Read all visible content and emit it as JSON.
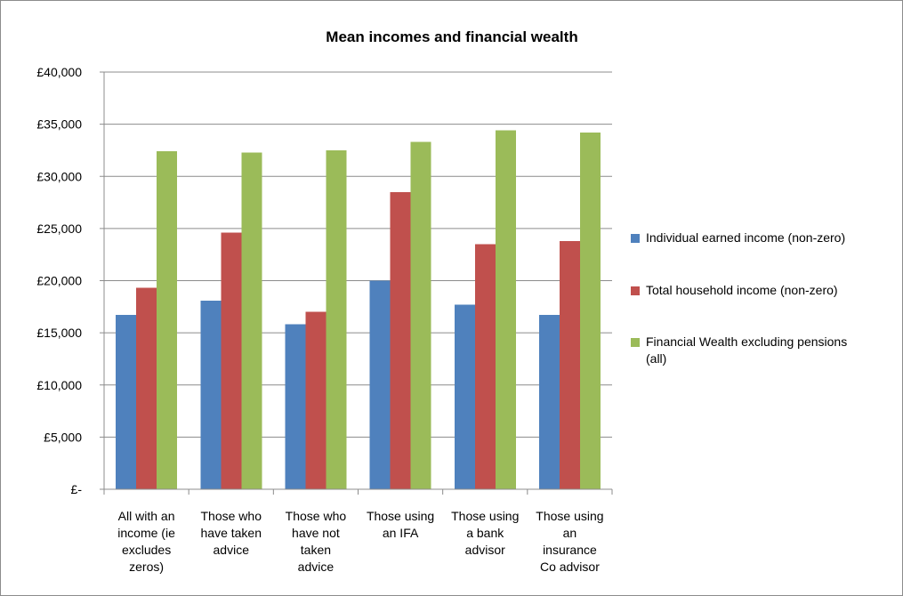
{
  "chart_data": {
    "type": "bar",
    "title": "Mean incomes and financial wealth",
    "categories": [
      [
        "All with an",
        "income (ie",
        "excludes",
        "zeros)"
      ],
      [
        "Those who",
        "have taken",
        "advice"
      ],
      [
        "Those who",
        "have not",
        "taken",
        "advice"
      ],
      [
        "Those using",
        "an IFA"
      ],
      [
        "Those using",
        "a bank",
        "advisor"
      ],
      [
        "Those using",
        "an",
        "insurance",
        "Co advisor"
      ]
    ],
    "series": [
      {
        "name": "Individual earned income (non-zero)",
        "legend_lines": [
          "Individual earned income (non-zero)"
        ],
        "color": "#4F81BD",
        "values": [
          16700,
          18100,
          15800,
          20000,
          17700,
          16700
        ]
      },
      {
        "name": "Total household income (non-zero)",
        "legend_lines": [
          "Total household income (non-zero)"
        ],
        "color": "#C0504D",
        "values": [
          19300,
          24600,
          17000,
          28500,
          23500,
          23800
        ]
      },
      {
        "name": "Financial Wealth excluding pensions (all)",
        "legend_lines": [
          "Financial Wealth excluding pensions",
          "(all)"
        ],
        "color": "#9BBB59",
        "values": [
          32400,
          32300,
          32500,
          33300,
          34400,
          34200
        ]
      }
    ],
    "y_ticks": [
      0,
      5000,
      10000,
      15000,
      20000,
      25000,
      30000,
      35000,
      40000
    ],
    "y_tick_labels": [
      "£-",
      "£5,000",
      "£10,000",
      "£15,000",
      "£20,000",
      "£25,000",
      "£30,000",
      "£35,000",
      "£40,000"
    ],
    "ylim": [
      0,
      40000
    ],
    "grid": true,
    "legend_position": "right",
    "xlabel": "",
    "ylabel": ""
  }
}
